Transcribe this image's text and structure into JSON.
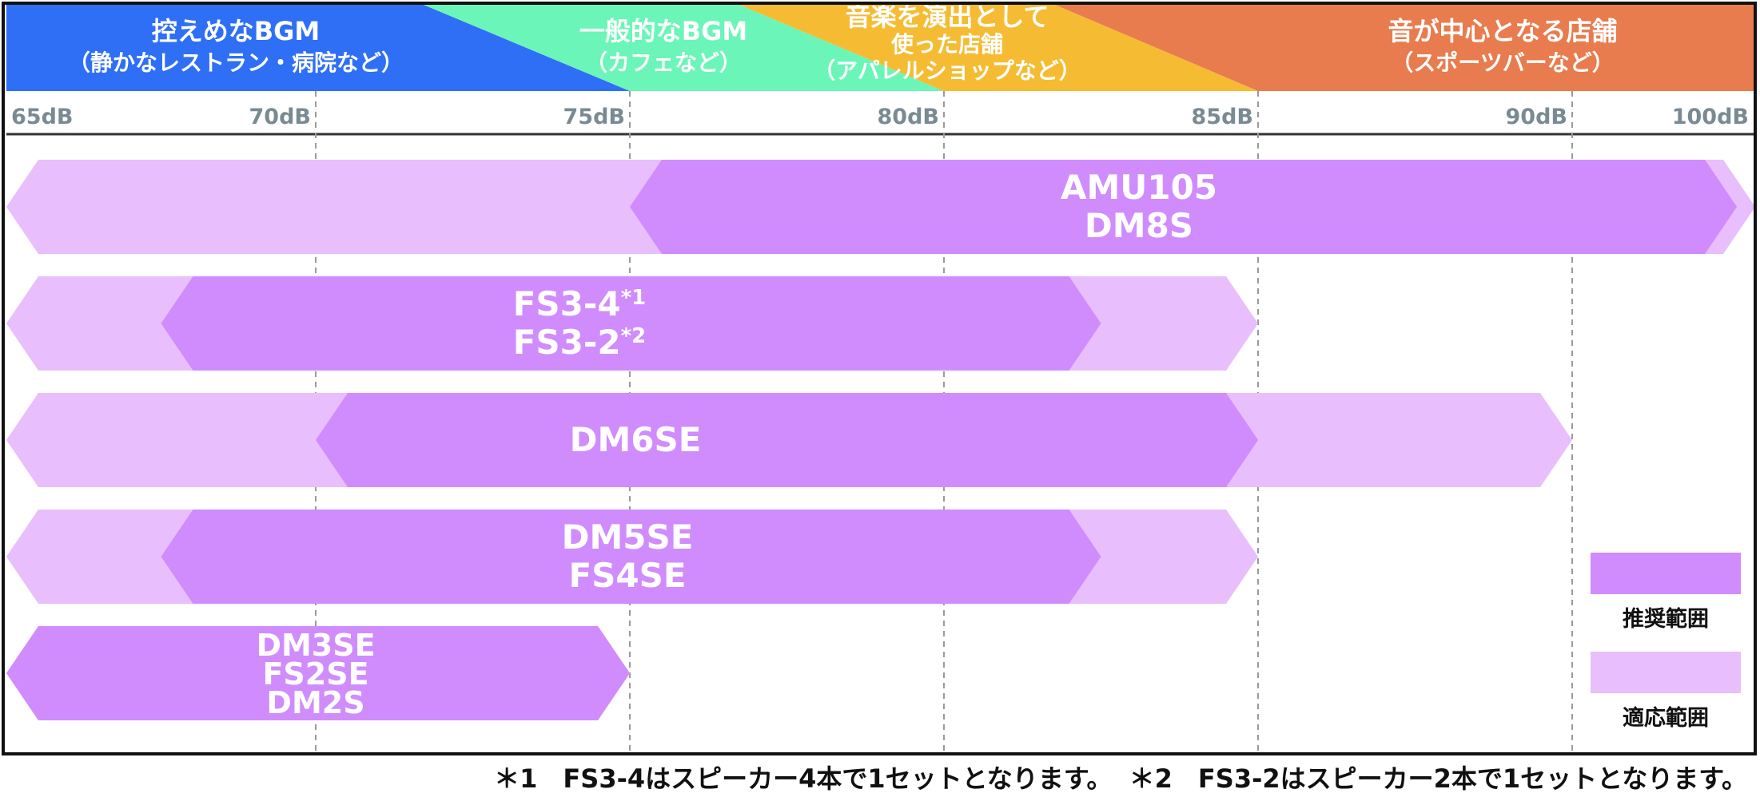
{
  "chart_data": {
    "type": "range-bar",
    "x_unit": "dB",
    "x_ticks": [
      65,
      70,
      75,
      80,
      85,
      90,
      100
    ],
    "x_tick_labels": [
      "65dB",
      "70dB",
      "75dB",
      "80dB",
      "85dB",
      "90dB",
      "100dB"
    ],
    "zones": [
      {
        "label": [
          "控えめなBGM",
          "（静かなレストラン・病院など）"
        ],
        "color": "#2f6ff5",
        "from": 65,
        "to": 75
      },
      {
        "label": [
          "一般的なBGM",
          "（カフェなど）"
        ],
        "color": "#6cf5b8",
        "from": 70,
        "to": 80
      },
      {
        "label": [
          "音楽を演出として",
          "使った店舗",
          "（アパレルショップなど）"
        ],
        "color": "#f5bc33",
        "from": 75,
        "to": 85
      },
      {
        "label": [
          "音が中心となる店舗",
          "（スポーツバーなど）"
        ],
        "color": "#e87c4e",
        "from": 80,
        "to": 100
      }
    ],
    "series": [
      {
        "labels": [
          "AMU105",
          "DM8S"
        ],
        "recommended": [
          75,
          99
        ],
        "applicable": [
          65,
          100
        ]
      },
      {
        "labels": [
          "FS3-4",
          "FS3-2"
        ],
        "superscripts": [
          "*1",
          "*2"
        ],
        "recommended": [
          67.5,
          82.5
        ],
        "applicable": [
          65,
          85
        ]
      },
      {
        "labels": [
          "DM6SE"
        ],
        "recommended": [
          70,
          85
        ],
        "applicable": [
          65,
          90
        ]
      },
      {
        "labels": [
          "DM5SE",
          "FS4SE"
        ],
        "recommended": [
          67.5,
          82.5
        ],
        "applicable": [
          65,
          85
        ]
      },
      {
        "labels": [
          "DM3SE",
          "FS2SE",
          "DM2S"
        ],
        "recommended": [
          65,
          75
        ],
        "applicable": [
          65,
          75
        ]
      }
    ],
    "legend": [
      {
        "label": "推奨範囲",
        "color": "#d08cfc"
      },
      {
        "label": "適応範囲",
        "color": "#e8befc"
      }
    ],
    "grid": true
  },
  "footnotes": [
    "＊1　FS3-4はスピーカー4本で1セットとなります。",
    "＊2　FS3-2はスピーカー2本で1セットとなります。"
  ]
}
